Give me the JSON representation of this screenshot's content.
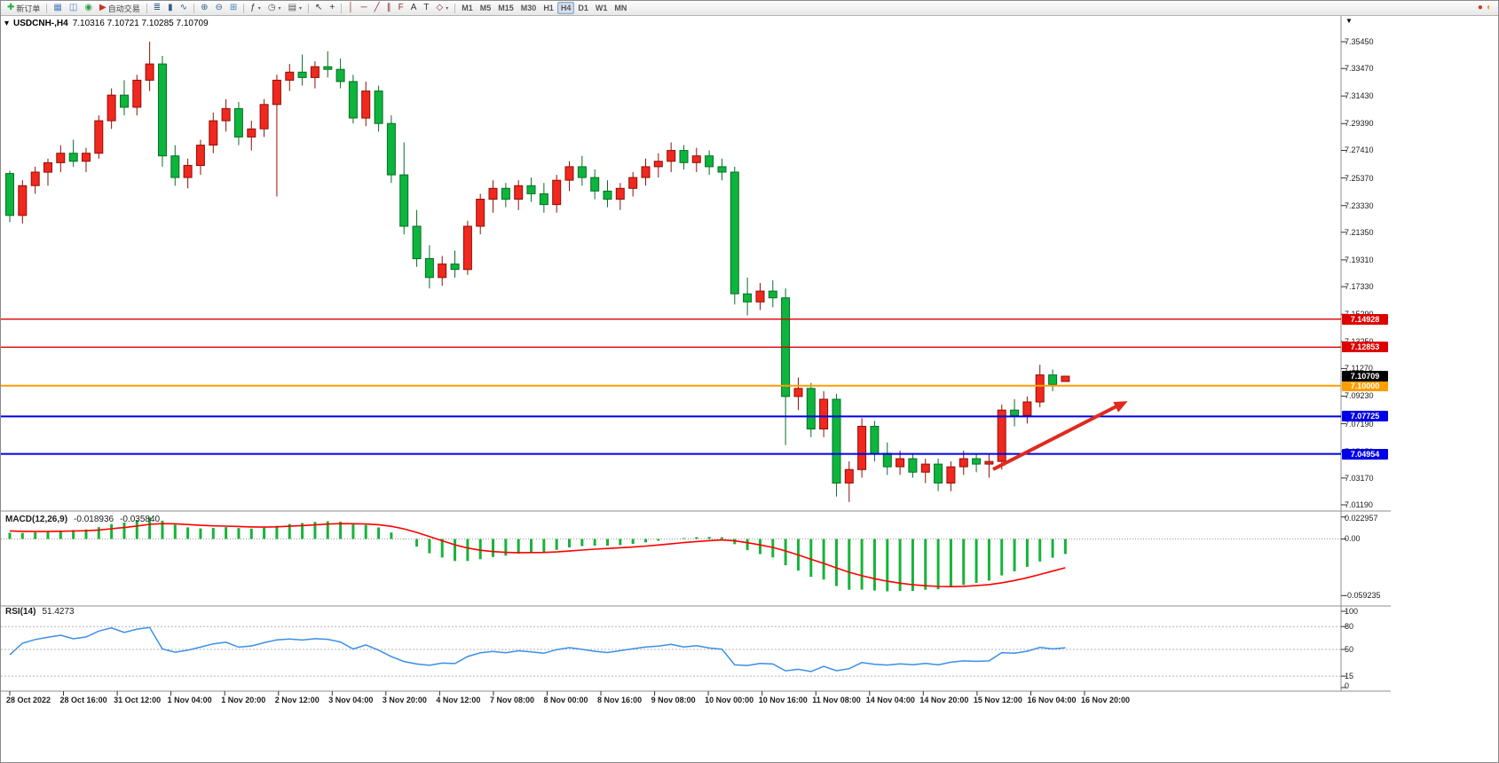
{
  "toolbar": {
    "groups": [
      {
        "items": [
          {
            "name": "new-order-button",
            "glyph": "✚",
            "glyph_color": "#1fae3c",
            "label": "新订单"
          }
        ]
      },
      {
        "items": [
          {
            "name": "chart-window-button",
            "glyph": "▦",
            "glyph_color": "#4a7ebb"
          },
          {
            "name": "profiles-button",
            "glyph": "◫",
            "glyph_color": "#4a7ebb"
          },
          {
            "name": "alerts-button",
            "glyph": "◉",
            "glyph_color": "#2a9d4a"
          },
          {
            "name": "autotrading-button",
            "glyph": "▶",
            "glyph_color": "#c93222",
            "label": "自动交易"
          }
        ]
      },
      {
        "items": [
          {
            "name": "bar-chart-type-button",
            "glyph": "≣",
            "glyph_color": "#365f91"
          },
          {
            "name": "candlestick-chart-type-button",
            "glyph": "▮",
            "glyph_color": "#365f91"
          },
          {
            "name": "line-chart-type-button",
            "glyph": "∿",
            "glyph_color": "#365f91"
          }
        ]
      },
      {
        "items": [
          {
            "name": "zoom-in-button",
            "glyph": "⊕",
            "glyph_color": "#365f91"
          },
          {
            "name": "zoom-out-button",
            "glyph": "⊖",
            "glyph_color": "#365f91"
          },
          {
            "name": "tile-windows-button",
            "glyph": "⊞",
            "glyph_color": "#4a7ebb"
          }
        ]
      },
      {
        "items": [
          {
            "name": "indicators-button",
            "glyph": "ƒ",
            "glyph_color": "#333333",
            "dropdown": true
          },
          {
            "name": "periods-button",
            "glyph": "◷",
            "glyph_color": "#555555",
            "dropdown": true
          },
          {
            "name": "templates-button",
            "glyph": "▤",
            "glyph_color": "#555555",
            "dropdown": true
          }
        ]
      },
      {
        "items": [
          {
            "name": "cursor-button",
            "glyph": "↖",
            "glyph_color": "#333333"
          },
          {
            "name": "crosshair-button",
            "glyph": "+",
            "glyph_color": "#333333"
          }
        ]
      },
      {
        "items": [
          {
            "name": "vertical-line-button",
            "glyph": "│",
            "glyph_color": "#8b2f2f"
          },
          {
            "name": "horizontal-line-button",
            "glyph": "─",
            "glyph_color": "#8b2f2f"
          },
          {
            "name": "trendline-button",
            "glyph": "╱",
            "glyph_color": "#8b2f2f"
          },
          {
            "name": "channel-button",
            "glyph": "∥",
            "glyph_color": "#8b2f2f"
          },
          {
            "name": "fibonacci-button",
            "glyph": "F",
            "glyph_color": "#8b2f2f"
          },
          {
            "name": "text-button",
            "glyph": "A",
            "glyph_color": "#333333"
          },
          {
            "name": "label-button",
            "glyph": "T",
            "glyph_color": "#333333"
          },
          {
            "name": "shapes-button",
            "glyph": "◇",
            "glyph_color": "#8b2f2f",
            "dropdown": true
          }
        ]
      },
      {
        "items": [
          {
            "name": "timeframe-m1-button",
            "label": "M1",
            "text_button": true
          },
          {
            "name": "timeframe-m5-button",
            "label": "M5",
            "text_button": true
          },
          {
            "name": "timeframe-m15-button",
            "label": "M15",
            "text_button": true
          },
          {
            "name": "timeframe-m30-button",
            "label": "M30",
            "text_button": true
          },
          {
            "name": "timeframe-h1-button",
            "label": "H1",
            "text_button": true
          },
          {
            "name": "timeframe-h4-button",
            "label": "H4",
            "text_button": true,
            "active": true
          },
          {
            "name": "timeframe-d1-button",
            "label": "D1",
            "text_button": true
          },
          {
            "name": "timeframe-w1-button",
            "label": "W1",
            "text_button": true
          },
          {
            "name": "timeframe-mn-button",
            "label": "MN",
            "text_button": true
          }
        ]
      }
    ],
    "right_items": [
      {
        "name": "connection-status-icon",
        "glyph": "●",
        "glyph_color": "#d23420"
      },
      {
        "name": "notification-icon",
        "glyph": "◐",
        "glyph_color": "#f0a000"
      }
    ]
  },
  "chart_data": {
    "type": "candlestick",
    "symbol": "USDCNH-",
    "timeframe": "H4",
    "title_symbol": "USDCNH-,H4",
    "title_ohlc": "7.10316 7.10721 7.10285 7.10709",
    "open": "7.10316",
    "high": "7.10721",
    "low": "7.10285",
    "close": "7.10709",
    "price_axis": [
      "7.35450",
      "7.33470",
      "7.31430",
      "7.29390",
      "7.27410",
      "7.25370",
      "7.23330",
      "7.21350",
      "7.19310",
      "7.17330",
      "7.15290",
      "7.13250",
      "7.11270",
      "7.09230",
      "7.07190",
      "7.05150",
      "7.03170",
      "7.01190"
    ],
    "time_axis": [
      "28 Oct 2022",
      "28 Oct 16:00",
      "31 Oct 12:00",
      "1 Nov 04:00",
      "1 Nov 20:00",
      "2 Nov 12:00",
      "3 Nov 04:00",
      "3 Nov 20:00",
      "4 Nov 12:00",
      "7 Nov 08:00",
      "8 Nov 00:00",
      "8 Nov 16:00",
      "9 Nov 08:00",
      "10 Nov 00:00",
      "10 Nov 16:00",
      "11 Nov 08:00",
      "14 Nov 04:00",
      "14 Nov 20:00",
      "15 Nov 12:00",
      "16 Nov 04:00",
      "16 Nov 20:00"
    ],
    "candles": [
      [
        7.257,
        7.259,
        7.221,
        7.226
      ],
      [
        7.226,
        7.252,
        7.22,
        7.248
      ],
      [
        7.248,
        7.262,
        7.242,
        7.258
      ],
      [
        7.258,
        7.268,
        7.248,
        7.265
      ],
      [
        7.265,
        7.278,
        7.258,
        7.272
      ],
      [
        7.272,
        7.282,
        7.262,
        7.266
      ],
      [
        7.266,
        7.276,
        7.258,
        7.272
      ],
      [
        7.272,
        7.3,
        7.268,
        7.296
      ],
      [
        7.296,
        7.32,
        7.29,
        7.315
      ],
      [
        7.315,
        7.326,
        7.3,
        7.306
      ],
      [
        7.306,
        7.33,
        7.3,
        7.326
      ],
      [
        7.326,
        7.3545,
        7.318,
        7.338
      ],
      [
        7.338,
        7.344,
        7.262,
        7.27
      ],
      [
        7.27,
        7.278,
        7.248,
        7.254
      ],
      [
        7.254,
        7.268,
        7.246,
        7.263
      ],
      [
        7.263,
        7.282,
        7.256,
        7.278
      ],
      [
        7.278,
        7.302,
        7.272,
        7.296
      ],
      [
        7.296,
        7.312,
        7.288,
        7.305
      ],
      [
        7.305,
        7.31,
        7.278,
        7.284
      ],
      [
        7.284,
        7.296,
        7.274,
        7.29
      ],
      [
        7.29,
        7.312,
        7.284,
        7.308
      ],
      [
        7.308,
        7.33,
        7.24,
        7.326
      ],
      [
        7.326,
        7.338,
        7.318,
        7.332
      ],
      [
        7.332,
        7.345,
        7.322,
        7.328
      ],
      [
        7.328,
        7.34,
        7.32,
        7.336
      ],
      [
        7.336,
        7.3475,
        7.328,
        7.334
      ],
      [
        7.334,
        7.342,
        7.32,
        7.325
      ],
      [
        7.325,
        7.33,
        7.294,
        7.298
      ],
      [
        7.298,
        7.325,
        7.292,
        7.318
      ],
      [
        7.318,
        7.322,
        7.288,
        7.294
      ],
      [
        7.294,
        7.3,
        7.25,
        7.256
      ],
      [
        7.256,
        7.28,
        7.212,
        7.218
      ],
      [
        7.218,
        7.23,
        7.188,
        7.194
      ],
      [
        7.194,
        7.204,
        7.172,
        7.18
      ],
      [
        7.18,
        7.196,
        7.174,
        7.19
      ],
      [
        7.19,
        7.2,
        7.18,
        7.186
      ],
      [
        7.186,
        7.222,
        7.182,
        7.218
      ],
      [
        7.218,
        7.242,
        7.212,
        7.238
      ],
      [
        7.238,
        7.252,
        7.228,
        7.246
      ],
      [
        7.246,
        7.25,
        7.232,
        7.238
      ],
      [
        7.238,
        7.252,
        7.23,
        7.248
      ],
      [
        7.248,
        7.254,
        7.236,
        7.242
      ],
      [
        7.242,
        7.25,
        7.228,
        7.234
      ],
      [
        7.234,
        7.256,
        7.228,
        7.252
      ],
      [
        7.252,
        7.266,
        7.244,
        7.262
      ],
      [
        7.262,
        7.27,
        7.248,
        7.254
      ],
      [
        7.254,
        7.26,
        7.238,
        7.244
      ],
      [
        7.244,
        7.252,
        7.232,
        7.238
      ],
      [
        7.238,
        7.25,
        7.23,
        7.246
      ],
      [
        7.246,
        7.258,
        7.24,
        7.254
      ],
      [
        7.254,
        7.268,
        7.248,
        7.262
      ],
      [
        7.262,
        7.272,
        7.254,
        7.266
      ],
      [
        7.266,
        7.28,
        7.258,
        7.274
      ],
      [
        7.274,
        7.278,
        7.26,
        7.265
      ],
      [
        7.265,
        7.276,
        7.258,
        7.27
      ],
      [
        7.27,
        7.274,
        7.256,
        7.262
      ],
      [
        7.262,
        7.268,
        7.252,
        7.258
      ],
      [
        7.258,
        7.262,
        7.16,
        7.168
      ],
      [
        7.168,
        7.18,
        7.152,
        7.162
      ],
      [
        7.162,
        7.176,
        7.156,
        7.17
      ],
      [
        7.17,
        7.178,
        7.158,
        7.165
      ],
      [
        7.165,
        7.172,
        7.056,
        7.092
      ],
      [
        7.092,
        7.106,
        7.082,
        7.098
      ],
      [
        7.098,
        7.102,
        7.062,
        7.068
      ],
      [
        7.068,
        7.096,
        7.062,
        7.09
      ],
      [
        7.09,
        7.094,
        7.018,
        7.028
      ],
      [
        7.028,
        7.044,
        7.014,
        7.038
      ],
      [
        7.038,
        7.076,
        7.032,
        7.07
      ],
      [
        7.07,
        7.074,
        7.044,
        7.05
      ],
      [
        7.05,
        7.058,
        7.034,
        7.04
      ],
      [
        7.04,
        7.052,
        7.034,
        7.046
      ],
      [
        7.046,
        7.05,
        7.032,
        7.036
      ],
      [
        7.036,
        7.046,
        7.028,
        7.042
      ],
      [
        7.042,
        7.046,
        7.022,
        7.028
      ],
      [
        7.028,
        7.044,
        7.022,
        7.04
      ],
      [
        7.04,
        7.052,
        7.034,
        7.046
      ],
      [
        7.046,
        7.05,
        7.036,
        7.042
      ],
      [
        7.042,
        7.05,
        7.032,
        7.044
      ],
      [
        7.044,
        7.086,
        7.038,
        7.082
      ],
      [
        7.082,
        7.09,
        7.07,
        7.078
      ],
      [
        7.078,
        7.092,
        7.072,
        7.088
      ],
      [
        7.088,
        7.1155,
        7.084,
        7.108
      ],
      [
        7.108,
        7.112,
        7.096,
        7.101
      ],
      [
        7.10316,
        7.10721,
        7.10285,
        7.10709
      ]
    ],
    "indicator_warmup_closes": [
      7.207,
      7.21,
      7.208,
      7.213,
      7.216,
      7.213,
      7.219,
      7.222,
      7.22,
      7.225,
      7.228,
      7.226,
      7.231,
      7.234,
      7.232,
      7.237,
      7.24,
      7.238,
      7.243,
      7.246,
      7.244,
      7.249,
      7.252,
      7.25,
      7.249,
      7.251,
      7.248,
      7.25,
      7.252,
      7.254
    ],
    "hlines": [
      {
        "label": "7.14928",
        "value": 7.14928,
        "color": "#dd0000",
        "width": 1.4
      },
      {
        "label": "7.12853",
        "value": 7.12853,
        "color": "#dd0000",
        "width": 1.4
      },
      {
        "label": "7.10000",
        "value": 7.1,
        "color": "#ff9e00",
        "width": 2
      },
      {
        "label": "7.07725",
        "value": 7.07725,
        "color": "#0000e6",
        "width": 2
      },
      {
        "label": "7.04954",
        "value": 7.04954,
        "color": "#0000e6",
        "width": 2
      }
    ],
    "current_price": {
      "label": "7.10709",
      "value": 7.10709,
      "badge_color": "#000000"
    },
    "trend_arrow": {
      "color": "#e02a1e"
    },
    "macd": {
      "name_label": "MACD(12,26,9)",
      "value_main": "-0.018936",
      "value_signal": "-0.035840",
      "fast": 12,
      "slow": 26,
      "signal_period": 9,
      "axis_labels": [
        "0.022957",
        "0.00",
        "-0.059235"
      ],
      "hist_color": "#17b33a",
      "signal_color": "#ff0000"
    },
    "rsi": {
      "name_label": "RSI(14)",
      "value_label": "51.4273",
      "period": 14,
      "levels": [
        80,
        50,
        15
      ],
      "axis_labels": [
        "100",
        "80",
        "50",
        "15",
        "0"
      ],
      "line_color": "#3a8fe8"
    },
    "colors": {
      "up": "#f0281e",
      "up_dark": "#8f0f06",
      "down": "#0db53c",
      "down_dark": "#066f27"
    }
  }
}
